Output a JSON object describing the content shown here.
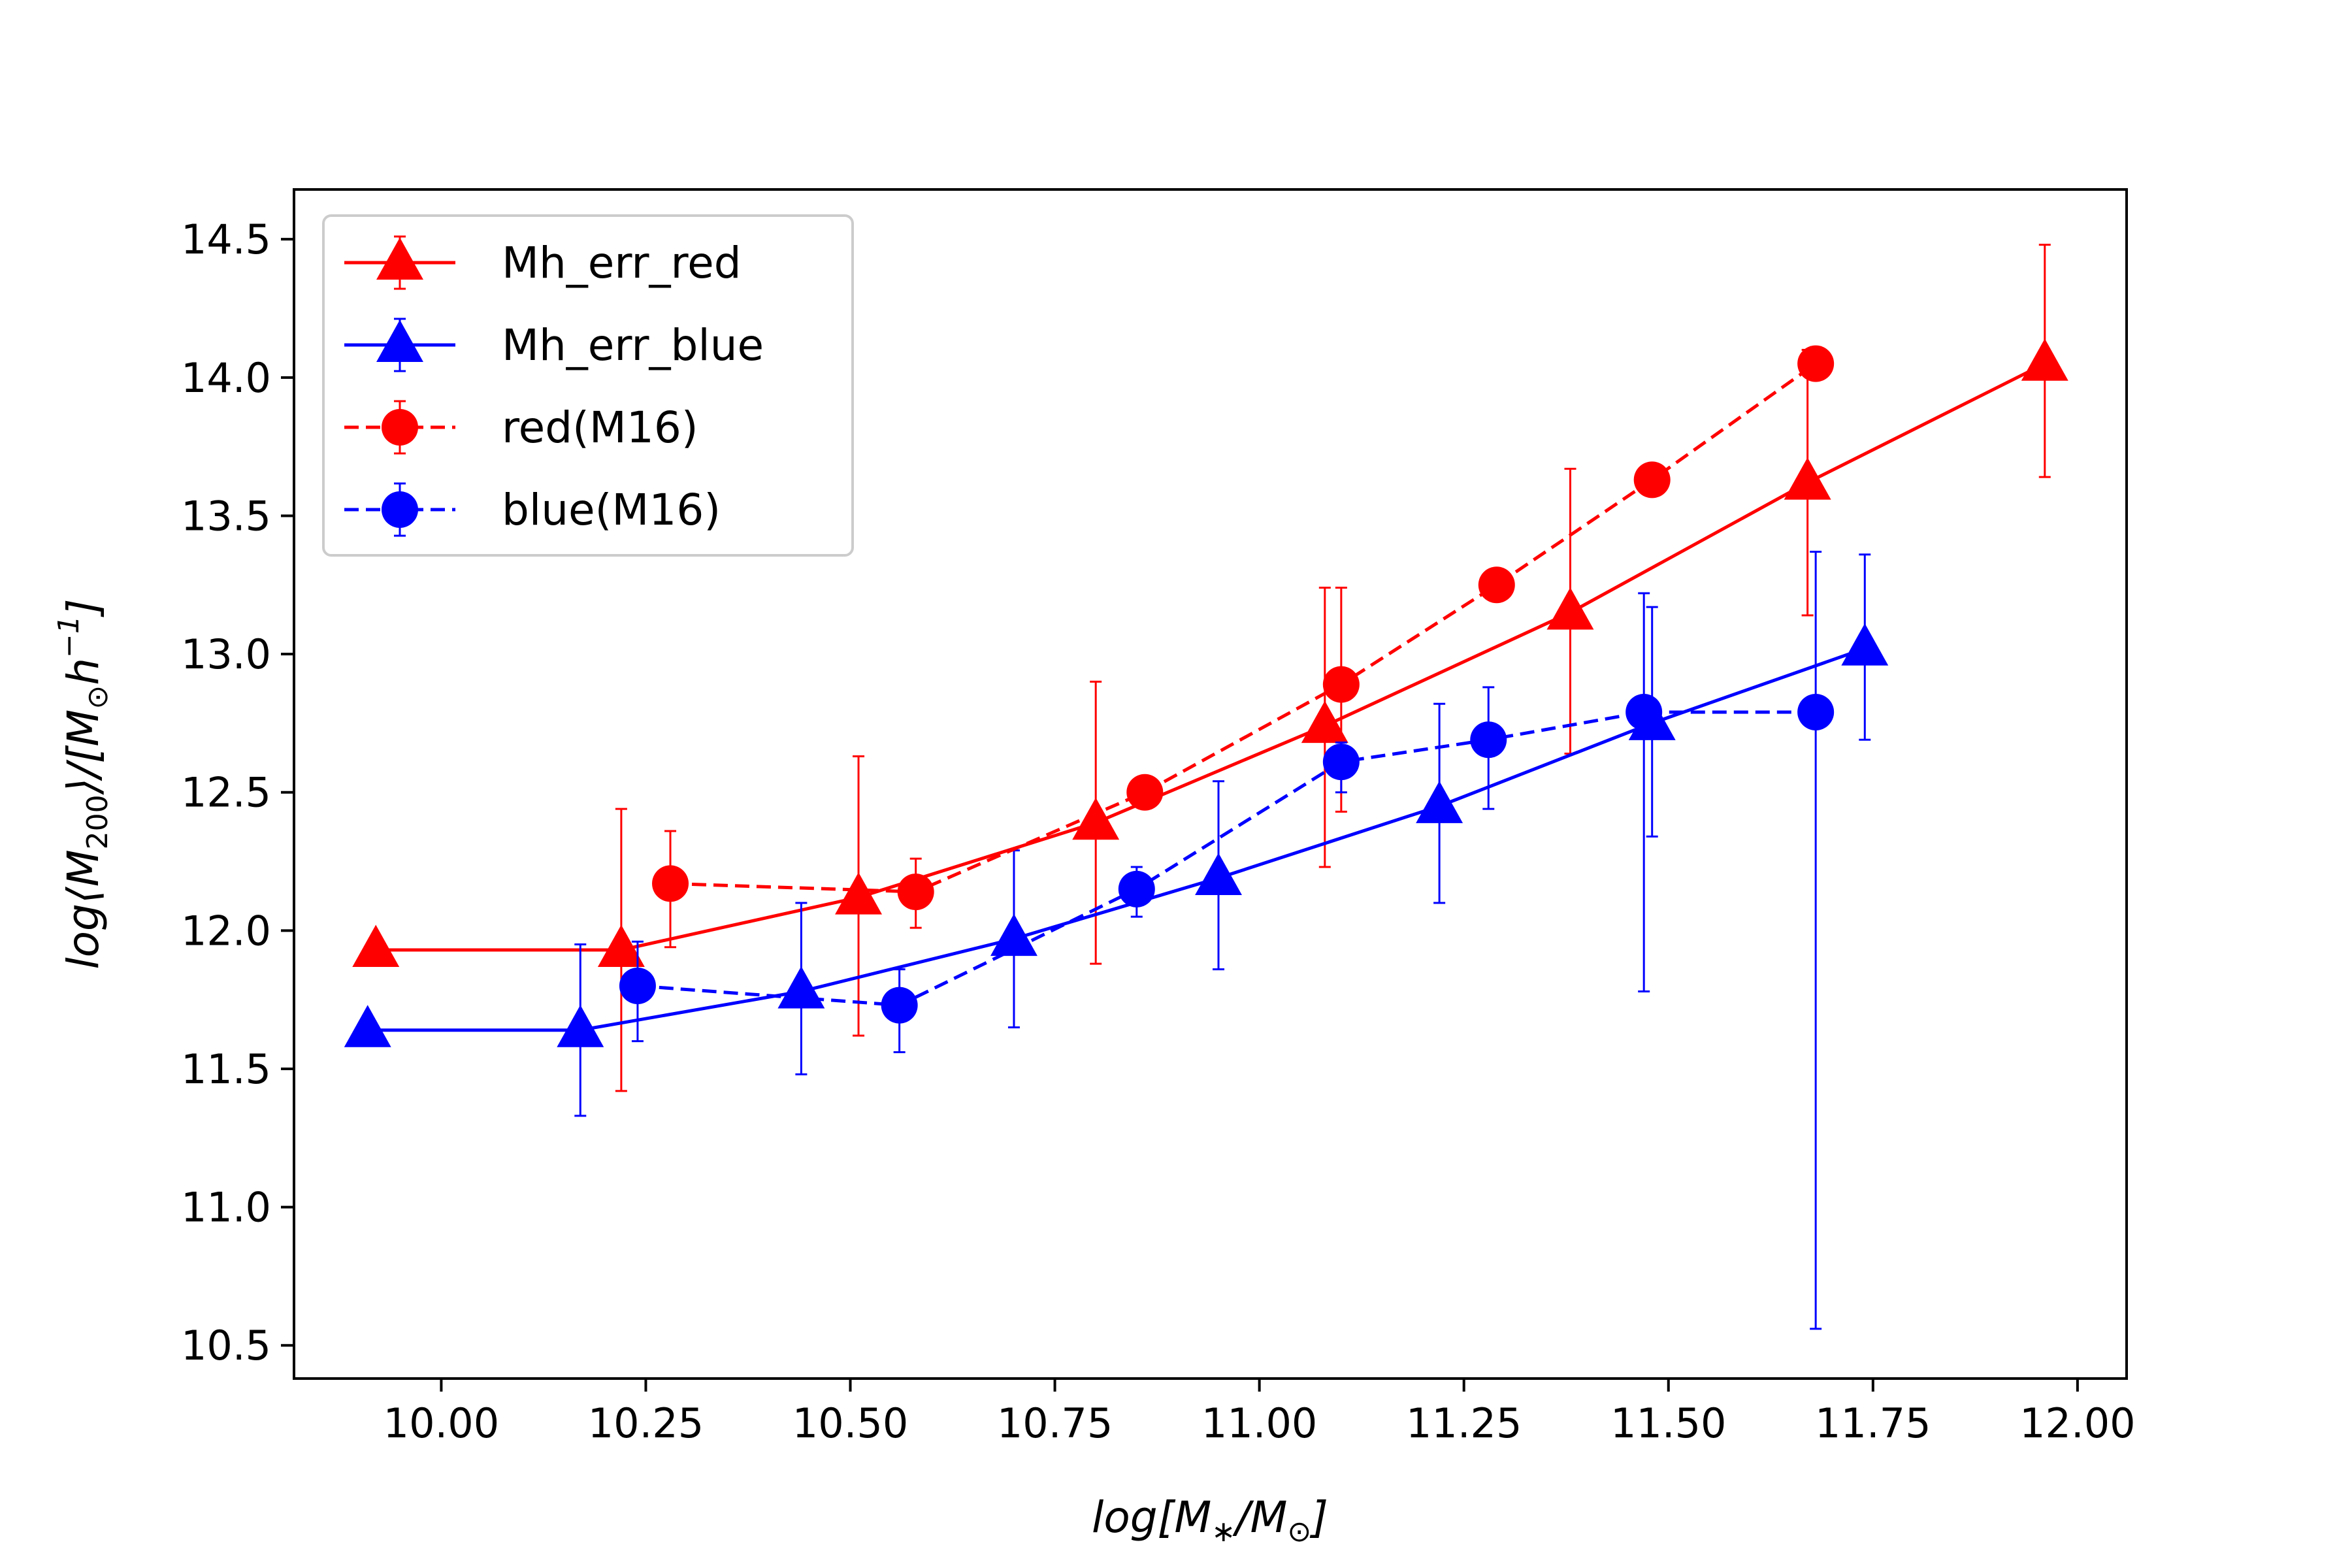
{
  "chart_data": {
    "type": "line",
    "title": "",
    "xlabel": "log[M_*/M_⊙]",
    "ylabel": "log⟨M_200⟩/[M_⊙h^-1]",
    "xlim": [
      9.82,
      12.06
    ],
    "ylim": [
      10.38,
      14.68
    ],
    "xticks": [
      "10.00",
      "10.25",
      "10.50",
      "10.75",
      "11.00",
      "11.25",
      "11.50",
      "11.75",
      "12.00"
    ],
    "yticks": [
      "10.5",
      "11.0",
      "11.5",
      "12.0",
      "12.5",
      "13.0",
      "13.5",
      "14.0",
      "14.5"
    ],
    "grid": false,
    "legend_position": "top-left",
    "series": [
      {
        "name": "Mh_err_red",
        "color": "#ff0000",
        "marker": "triangle",
        "linestyle": "solid",
        "x": [
          9.92,
          10.22,
          10.51,
          10.8,
          11.08,
          11.38,
          11.67,
          11.96
        ],
        "y": [
          11.93,
          11.93,
          12.12,
          12.39,
          12.74,
          13.15,
          13.62,
          14.05
        ],
        "err_low": [
          null,
          11.42,
          11.62,
          11.88,
          12.23,
          12.64,
          13.14,
          13.64
        ],
        "err_high": [
          null,
          12.44,
          12.63,
          12.9,
          13.24,
          13.67,
          14.1,
          14.48
        ]
      },
      {
        "name": "Mh_err_blue",
        "color": "#0000ff",
        "marker": "triangle",
        "linestyle": "solid",
        "x": [
          9.91,
          10.17,
          10.44,
          10.7,
          10.95,
          11.22,
          11.48,
          11.74
        ],
        "y": [
          11.64,
          11.64,
          11.78,
          11.97,
          12.19,
          12.45,
          12.75,
          13.02
        ],
        "err_low": [
          null,
          11.33,
          11.48,
          11.65,
          11.86,
          12.1,
          12.34,
          12.69
        ],
        "err_high": [
          null,
          11.95,
          12.1,
          12.29,
          12.54,
          12.82,
          13.17,
          13.36
        ]
      },
      {
        "name": "red(M16)",
        "color": "#ff0000",
        "marker": "circle",
        "linestyle": "dashed",
        "x": [
          10.28,
          10.58,
          10.86,
          11.1,
          11.29,
          11.48,
          11.68
        ],
        "y": [
          12.17,
          12.14,
          12.5,
          12.89,
          13.25,
          13.63,
          14.05
        ],
        "err_low": [
          11.94,
          12.01,
          null,
          12.43,
          null,
          null,
          null
        ],
        "err_high": [
          12.36,
          12.26,
          null,
          13.24,
          null,
          null,
          14.11
        ]
      },
      {
        "name": "blue(M16)",
        "color": "#0000ff",
        "marker": "circle",
        "linestyle": "dashed",
        "x": [
          10.24,
          10.56,
          10.85,
          11.1,
          11.28,
          11.47,
          11.68
        ],
        "y": [
          11.8,
          11.73,
          12.15,
          12.61,
          12.69,
          12.79,
          12.79
        ],
        "err_low": [
          11.6,
          11.56,
          12.05,
          12.5,
          12.44,
          11.78,
          10.56
        ],
        "err_high": [
          11.96,
          11.86,
          12.23,
          12.68,
          12.88,
          13.22,
          13.37
        ]
      }
    ]
  }
}
